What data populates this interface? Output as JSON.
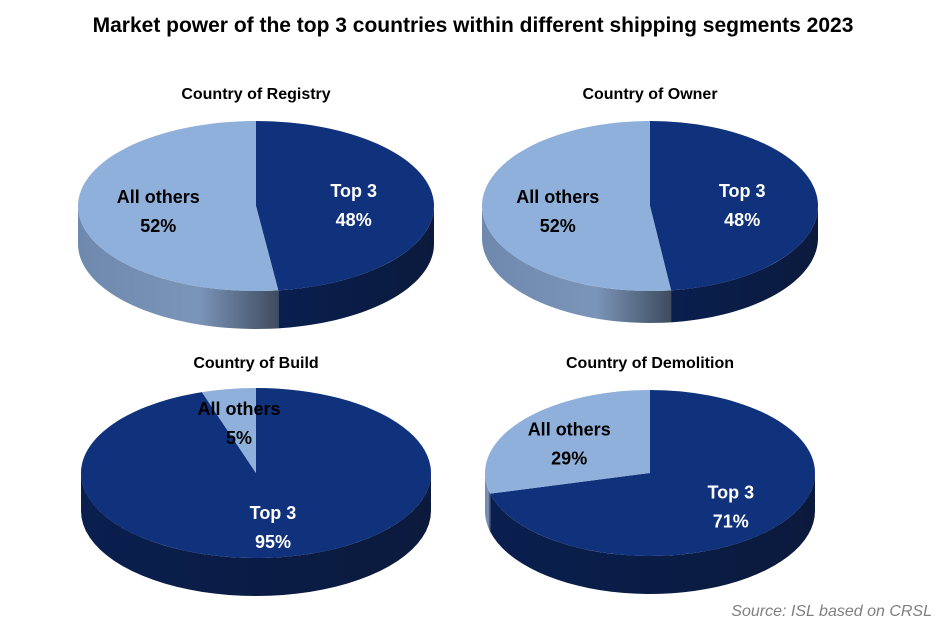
{
  "title": "Market power of the top 3 countries within different shipping segments 2023",
  "source": "Source: ISL based on CRSL",
  "colors": {
    "top3": "#10317b",
    "others": "#8fb0da"
  },
  "chart_data": [
    {
      "type": "pie",
      "title": "Country of Registry",
      "slices": [
        {
          "label": "Top 3",
          "value": 48,
          "display": "48%"
        },
        {
          "label": "All others",
          "value": 52,
          "display": "52%"
        }
      ]
    },
    {
      "type": "pie",
      "title": "Country of Owner",
      "slices": [
        {
          "label": "Top 3",
          "value": 48,
          "display": "48%"
        },
        {
          "label": "All others",
          "value": 52,
          "display": "52%"
        }
      ]
    },
    {
      "type": "pie",
      "title": "Country of Build",
      "slices": [
        {
          "label": "Top 3",
          "value": 95,
          "display": "95%"
        },
        {
          "label": "All others",
          "value": 5,
          "display": "5%"
        }
      ]
    },
    {
      "type": "pie",
      "title": "Country of Demolition",
      "slices": [
        {
          "label": "Top 3",
          "value": 71,
          "display": "71%"
        },
        {
          "label": "All others",
          "value": 29,
          "display": "29%"
        }
      ]
    }
  ]
}
